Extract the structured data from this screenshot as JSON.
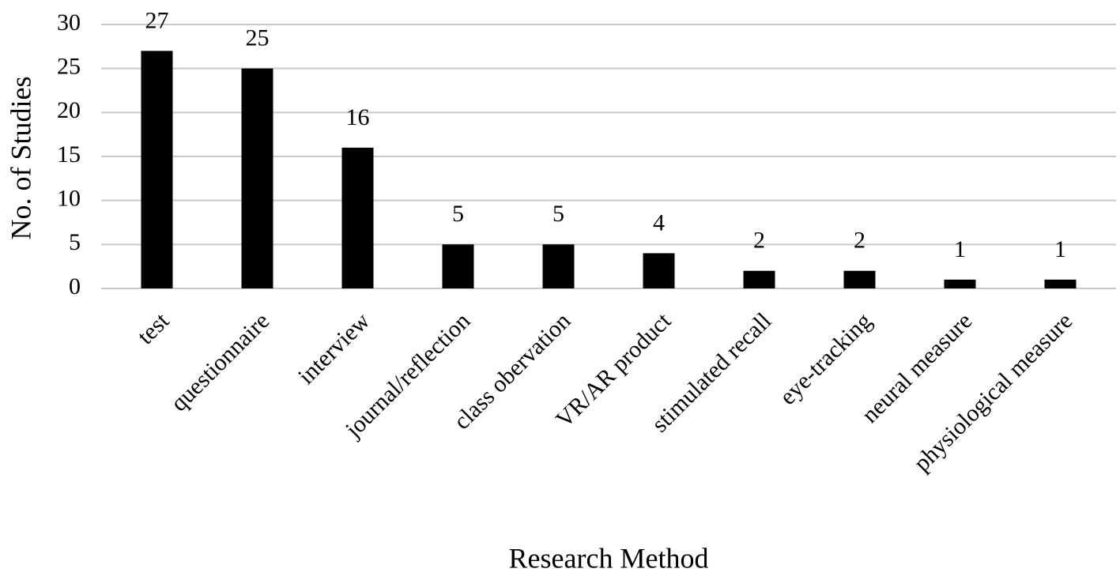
{
  "chart_data": {
    "type": "bar",
    "xlabel": "Research Method",
    "ylabel": "No. of Studies",
    "categories": [
      "test",
      "questionnaire",
      "interview",
      "journal/reflection",
      "class obervation",
      "VR/AR product",
      "stimulated recall",
      "eye-tracking",
      "neural measure",
      "physiological measure"
    ],
    "values": [
      27,
      25,
      16,
      5,
      5,
      4,
      2,
      2,
      1,
      1
    ],
    "color": "#000000",
    "ylim": [
      0,
      30
    ],
    "yticks": [
      0,
      5,
      10,
      15,
      20,
      25,
      30
    ],
    "grid": true
  }
}
